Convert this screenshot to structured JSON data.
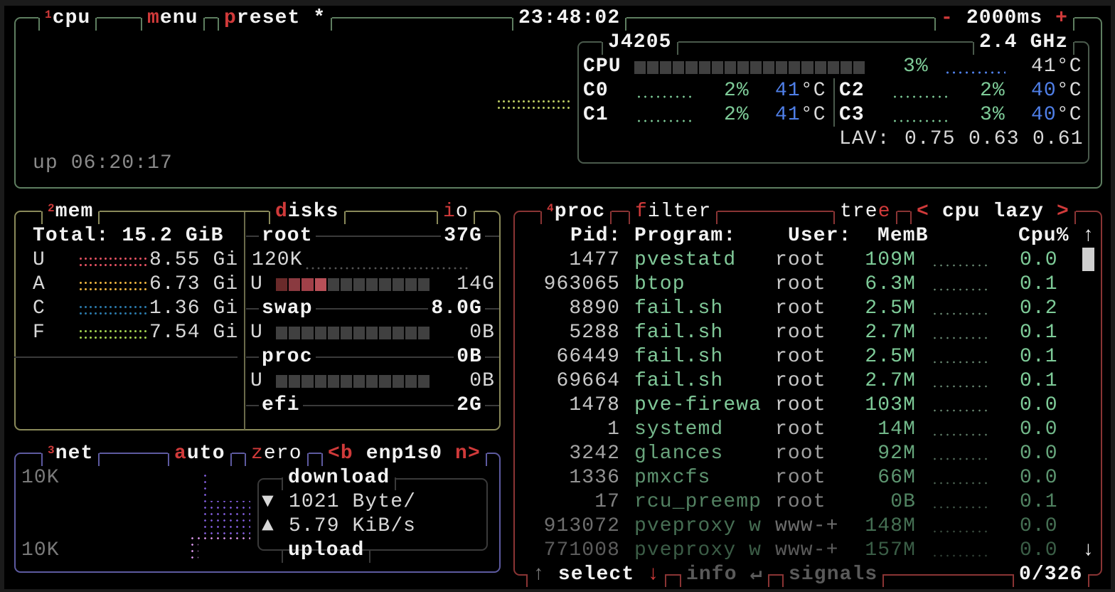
{
  "colors": {
    "cpu_border": "#5e7e60",
    "mem_border": "#8a8a5a",
    "net_border": "#5d5aa0",
    "proc_border": "#8a3434",
    "hotkey": "#d03a3a",
    "value_green": "#7ecb98",
    "temp_blue": "#4f7fe8"
  },
  "cpu": {
    "box_number": "1",
    "title": "cpu",
    "menu_key": "m",
    "menu_rest": "enu",
    "preset_key": "p",
    "preset_rest": "reset *",
    "clock": "23:48:02",
    "interval_minus": "-",
    "interval": "2000ms",
    "interval_plus": "+",
    "model": "J4205",
    "freq": "2.4 GHz",
    "total_label": "CPU",
    "total_pct": "3%",
    "total_temp": "41°C",
    "total_usage_fraction": 0.03,
    "cores": [
      {
        "label": "C0",
        "pct": "2%",
        "temp_num": "41",
        "temp_unit": "°C"
      },
      {
        "label": "C1",
        "pct": "2%",
        "temp_num": "41",
        "temp_unit": "°C"
      },
      {
        "label": "C2",
        "pct": "2%",
        "temp_num": "40",
        "temp_unit": "°C"
      },
      {
        "label": "C3",
        "pct": "3%",
        "temp_num": "40",
        "temp_unit": "°C"
      }
    ],
    "lav_label": "LAV:",
    "lav": [
      "0.75",
      "0.63",
      "0.61"
    ],
    "uptime": "up 06:20:17"
  },
  "mem": {
    "box_number": "2",
    "title": "mem",
    "total": "Total: 15.2 GiB",
    "rows": [
      {
        "label": "U",
        "value": "8.55 Gi",
        "color": "#e05060"
      },
      {
        "label": "A",
        "value": "6.73 Gi",
        "color": "#e8b040"
      },
      {
        "label": "C",
        "value": "1.36 Gi",
        "color": "#2a78a8"
      },
      {
        "label": "F",
        "value": "7.54 Gi",
        "color": "#a0d050"
      }
    ]
  },
  "disks": {
    "title_key": "d",
    "title_rest": "isks",
    "io_key": "i",
    "io_rest": "o",
    "io_rate": "120K",
    "items": [
      {
        "name": "root",
        "size": "37G",
        "used_label": "U",
        "used": "14G",
        "used_fraction": 0.33
      },
      {
        "name": "swap",
        "size": "8.0G",
        "used_label": "U",
        "used": "0B",
        "used_fraction": 0
      },
      {
        "name": "proc",
        "size": "0B",
        "used_label": "U",
        "used": "0B",
        "used_fraction": 0
      },
      {
        "name": "efi",
        "size": "2G"
      }
    ]
  },
  "net": {
    "box_number": "3",
    "title": "net",
    "auto_key": "a",
    "auto_rest": "uto",
    "zero_key": "z",
    "zero_rest": "ero",
    "prev_key": "<b",
    "iface": "enp1s0",
    "next_key": "n>",
    "scale_top": "10K",
    "scale_bottom": "10K",
    "download_label": "download",
    "download_icon": "▼",
    "download_rate": "1021 Byte/",
    "upload_icon": "▲",
    "upload_rate": "5.79 KiB/s",
    "upload_label": "upload"
  },
  "proc": {
    "box_number": "4",
    "title": "proc",
    "filter_key": "f",
    "filter_rest": "ilter",
    "tree_rest": "tre",
    "tree_key": "e",
    "sort_prev": "<",
    "sort": "cpu lazy",
    "sort_next": ">",
    "headers": {
      "pid": "Pid:",
      "program": "Program:",
      "user": "User:",
      "mem": "MemB",
      "cpu": "Cpu%"
    },
    "scroll_up": "↑",
    "scroll_down": "↓",
    "rows": [
      {
        "pid": "1477",
        "program": "pvestatd",
        "user": "root",
        "mem": "109M",
        "cpu": "0.0"
      },
      {
        "pid": "963065",
        "program": "btop",
        "user": "root",
        "mem": "6.3M",
        "cpu": "0.1"
      },
      {
        "pid": "8890",
        "program": "fail.sh",
        "user": "root",
        "mem": "2.5M",
        "cpu": "0.2"
      },
      {
        "pid": "5288",
        "program": "fail.sh",
        "user": "root",
        "mem": "2.7M",
        "cpu": "0.1"
      },
      {
        "pid": "66449",
        "program": "fail.sh",
        "user": "root",
        "mem": "2.5M",
        "cpu": "0.1"
      },
      {
        "pid": "69664",
        "program": "fail.sh",
        "user": "root",
        "mem": "2.7M",
        "cpu": "0.1"
      },
      {
        "pid": "1478",
        "program": "pve-firewa",
        "user": "root",
        "mem": "103M",
        "cpu": "0.0"
      },
      {
        "pid": "1",
        "program": "systemd",
        "user": "root",
        "mem": "14M",
        "cpu": "0.0"
      },
      {
        "pid": "3242",
        "program": "glances",
        "user": "root",
        "mem": "92M",
        "cpu": "0.0"
      },
      {
        "pid": "1336",
        "program": "pmxcfs",
        "user": "root",
        "mem": "66M",
        "cpu": "0.0"
      },
      {
        "pid": "17",
        "program": "rcu_preemp",
        "user": "root",
        "mem": "0B",
        "cpu": "0.1"
      },
      {
        "pid": "913072",
        "program": "pveproxy w",
        "user": "www-+",
        "mem": "148M",
        "cpu": "0.0"
      },
      {
        "pid": "771008",
        "program": "pveproxy w",
        "user": "www-+",
        "mem": "157M",
        "cpu": "0.0"
      }
    ],
    "footer": {
      "up_arrow": "↑",
      "select": "select",
      "down_arrow": "↓",
      "info": "info",
      "enter": "↵",
      "signals": "signals",
      "count": "0/326"
    }
  }
}
